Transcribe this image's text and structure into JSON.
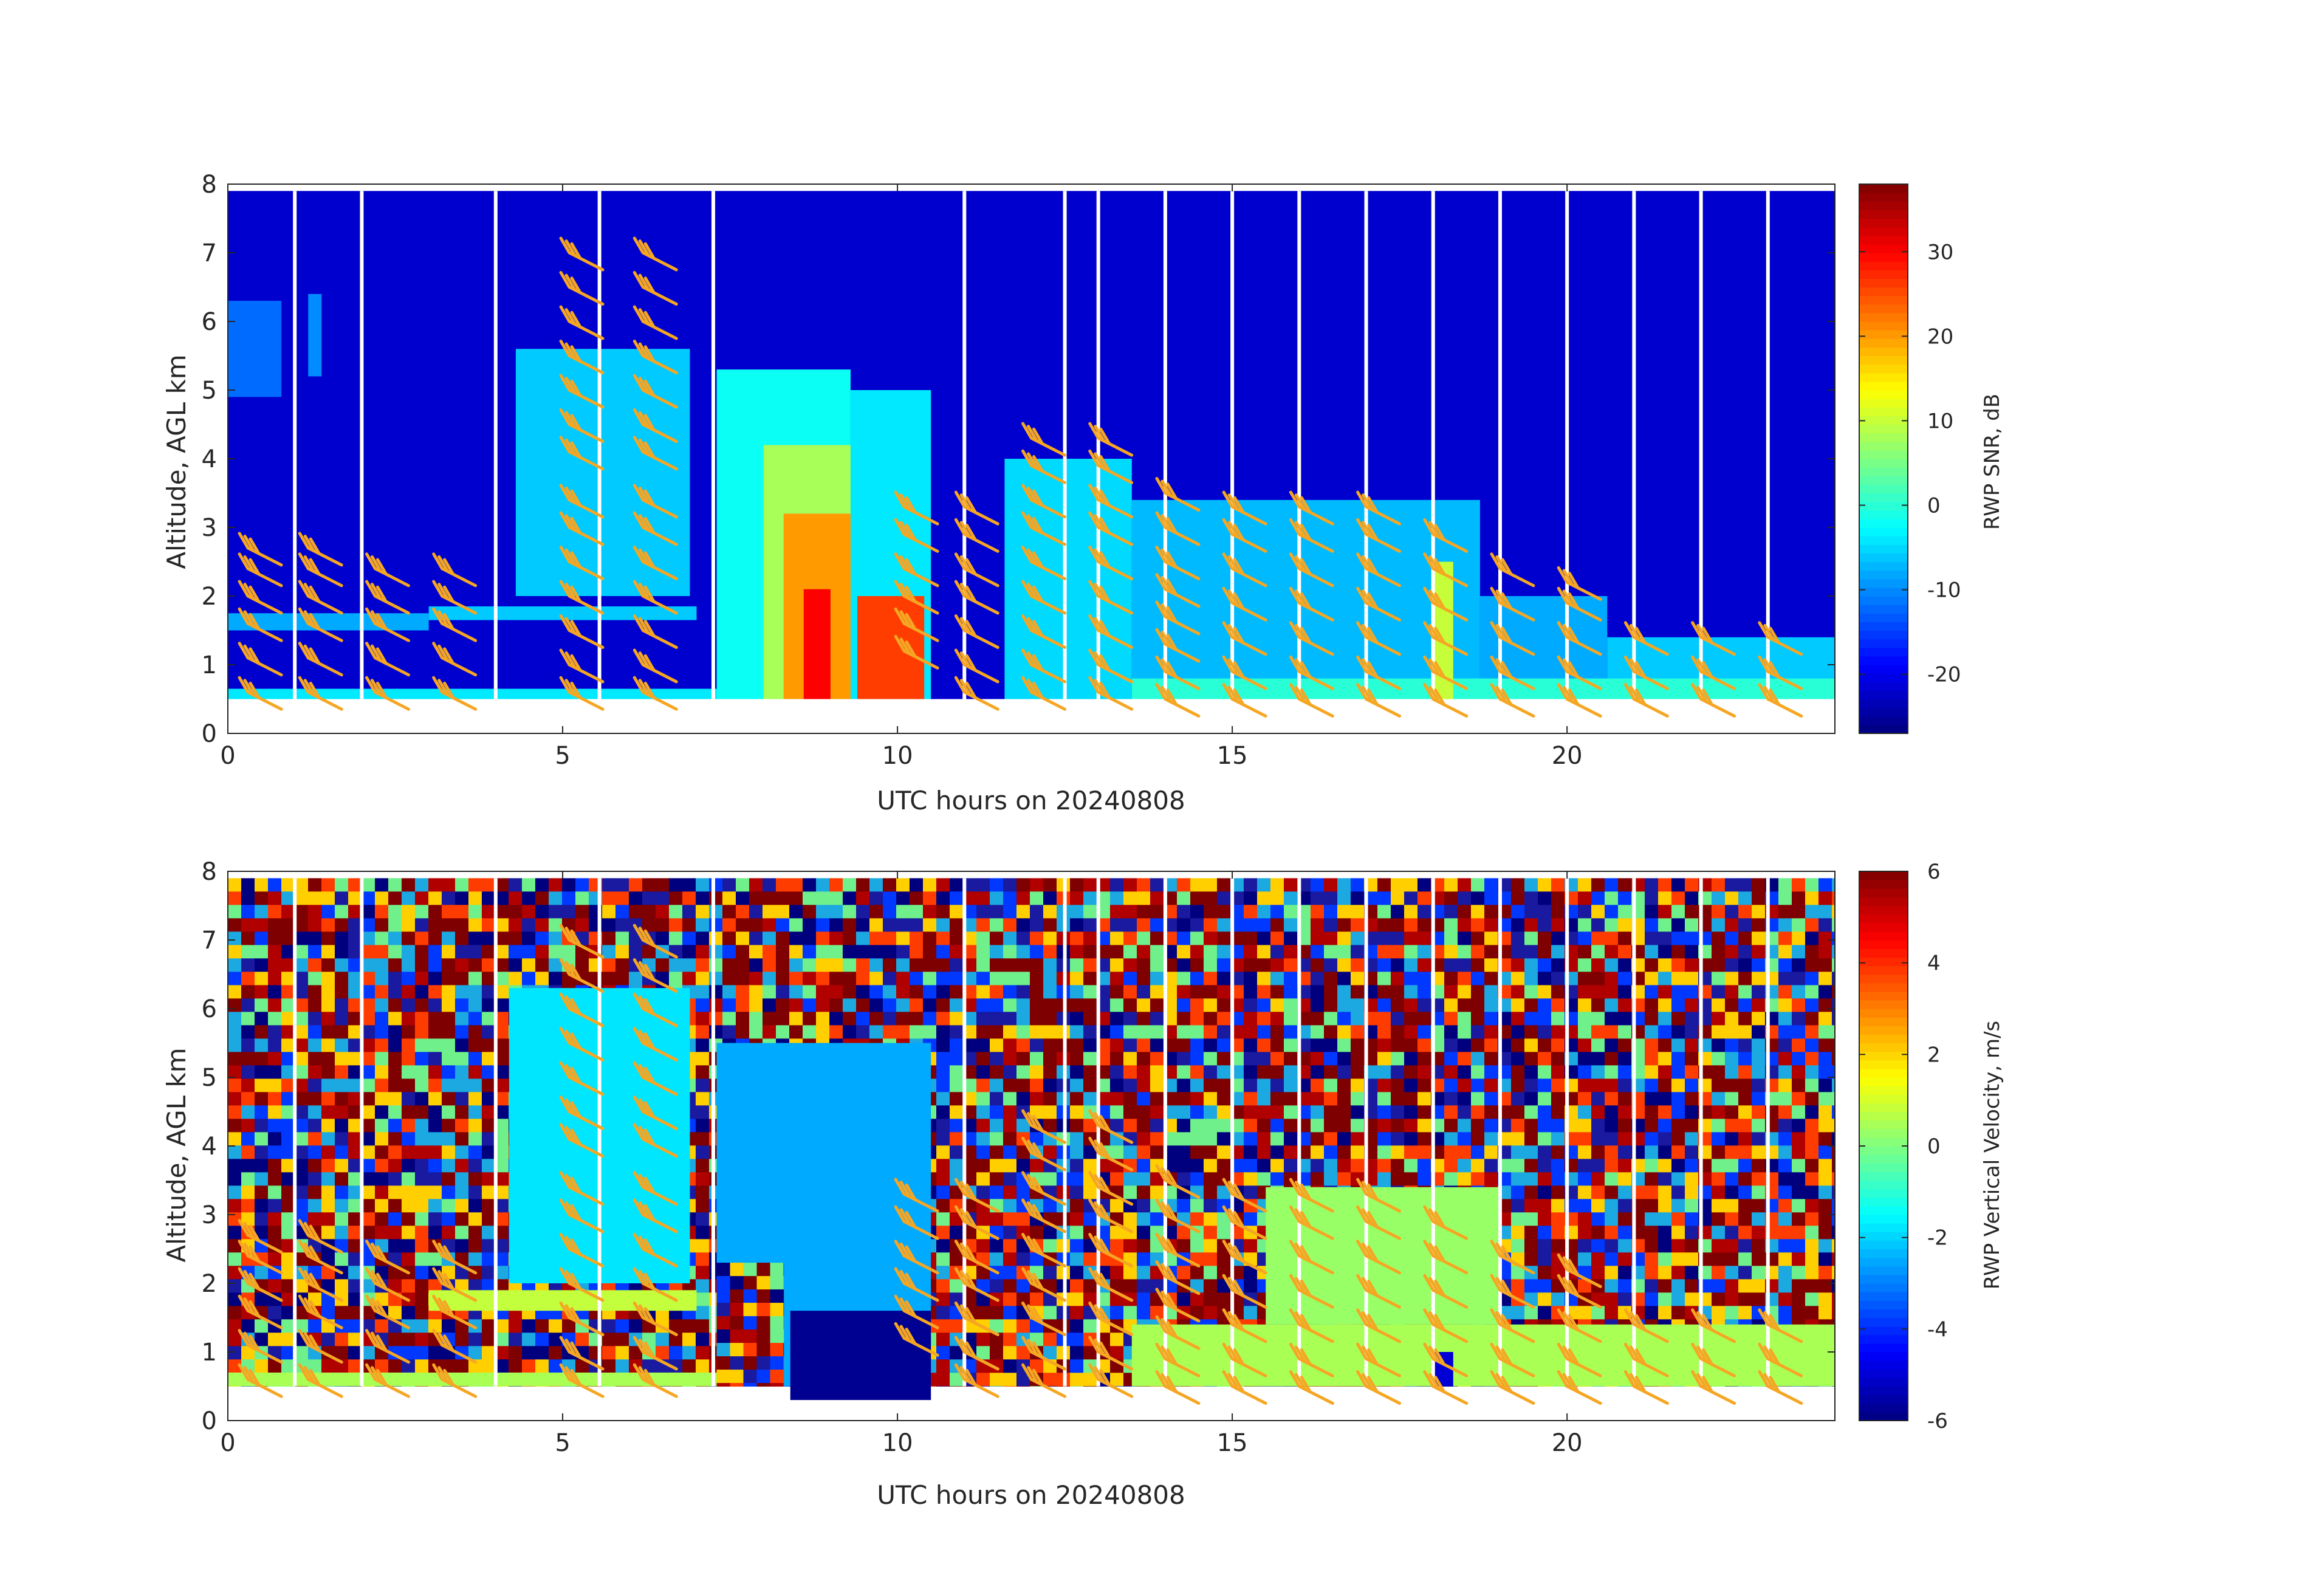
{
  "chart_data": [
    {
      "type": "heatmap",
      "id": "snr",
      "xlabel": "UTC hours on 20240808",
      "ylabel": "Altitude, AGL km",
      "xlim": [
        0,
        24
      ],
      "ylim": [
        0,
        8
      ],
      "xticks": [
        0,
        5,
        10,
        15,
        20
      ],
      "yticks": [
        0,
        1,
        2,
        3,
        4,
        5,
        6,
        7,
        8
      ],
      "colorbar": {
        "label": "RWP SNR, dB",
        "range": [
          -27,
          38
        ],
        "ticks": [
          -20,
          -10,
          0,
          10,
          20,
          30
        ],
        "colormap": "jet"
      },
      "data_gaps_hours": [
        1.0,
        2.0,
        4.0,
        5.55,
        7.25,
        11.0,
        12.5,
        13.0,
        14.0,
        15.0,
        16.0,
        17.0,
        18.0,
        19.0,
        20.0,
        21.0,
        22.0,
        23.0
      ],
      "regions": [
        {
          "x": [
            0,
            24
          ],
          "y": [
            0.5,
            7.9
          ],
          "value": -22
        },
        {
          "x": [
            0,
            0.8
          ],
          "y": [
            4.9,
            6.3
          ],
          "value": -12
        },
        {
          "x": [
            1.2,
            1.4
          ],
          "y": [
            5.2,
            6.4
          ],
          "value": -10
        },
        {
          "x": [
            0,
            7.3
          ],
          "y": [
            0.5,
            0.65
          ],
          "value": -4
        },
        {
          "x": [
            3.0,
            7.0
          ],
          "y": [
            1.65,
            1.85
          ],
          "value": -6
        },
        {
          "x": [
            0,
            3.0
          ],
          "y": [
            1.5,
            1.75
          ],
          "value": -8
        },
        {
          "x": [
            4.3,
            6.9
          ],
          "y": [
            2.0,
            5.6
          ],
          "value": -6
        },
        {
          "x": [
            7.3,
            9.3
          ],
          "y": [
            0.5,
            5.3
          ],
          "value": -2
        },
        {
          "x": [
            9.3,
            10.5
          ],
          "y": [
            0.5,
            5.0
          ],
          "value": -4
        },
        {
          "x": [
            8.0,
            9.3
          ],
          "y": [
            0.5,
            4.2
          ],
          "value": 8
        },
        {
          "x": [
            8.3,
            9.3
          ],
          "y": [
            0.5,
            3.2
          ],
          "value": 20
        },
        {
          "x": [
            8.6,
            9.0
          ],
          "y": [
            0.5,
            2.1
          ],
          "value": 30
        },
        {
          "x": [
            9.4,
            10.4
          ],
          "y": [
            0.5,
            2.0
          ],
          "value": 26
        },
        {
          "x": [
            11.6,
            13.5
          ],
          "y": [
            0.5,
            4.0
          ],
          "value": -5
        },
        {
          "x": [
            13.5,
            18.7
          ],
          "y": [
            0.5,
            3.4
          ],
          "value": -7
        },
        {
          "x": [
            18.7,
            20.6
          ],
          "y": [
            0.5,
            2.0
          ],
          "value": -8
        },
        {
          "x": [
            20.6,
            24.0
          ],
          "y": [
            0.5,
            1.4
          ],
          "value": -6
        },
        {
          "x": [
            13.5,
            24.0
          ],
          "y": [
            0.5,
            0.8
          ],
          "value": 0
        },
        {
          "x": [
            18.0,
            18.3
          ],
          "y": [
            0.5,
            2.5
          ],
          "value": 10
        }
      ]
    },
    {
      "type": "heatmap",
      "id": "velocity",
      "xlabel": "UTC hours on 20240808",
      "ylabel": "Altitude, AGL km",
      "xlim": [
        0,
        24
      ],
      "ylim": [
        0,
        8
      ],
      "xticks": [
        0,
        5,
        10,
        15,
        20
      ],
      "yticks": [
        0,
        1,
        2,
        3,
        4,
        5,
        6,
        7,
        8
      ],
      "colorbar": {
        "label": "RWP Vertical Velocity, m/s",
        "range": [
          -6,
          6
        ],
        "ticks": [
          -6,
          -4,
          -2,
          0,
          2,
          4,
          6
        ],
        "colormap": "jet"
      },
      "data_gaps_hours": [
        1.0,
        2.0,
        4.0,
        5.55,
        7.25,
        11.0,
        12.5,
        13.0,
        14.0,
        15.0,
        16.0,
        17.0,
        18.0,
        19.0,
        20.0,
        21.0,
        22.0,
        23.0
      ],
      "regions": [
        {
          "x": [
            0,
            24
          ],
          "y": [
            0.5,
            7.9
          ],
          "value": "noise"
        },
        {
          "x": [
            4.2,
            6.9
          ],
          "y": [
            2.0,
            6.3
          ],
          "value": -1.8
        },
        {
          "x": [
            7.3,
            10.5
          ],
          "y": [
            0.5,
            5.5
          ],
          "value": -2.5
        },
        {
          "x": [
            7.3,
            8.3
          ],
          "y": [
            0.5,
            2.3
          ],
          "value": "noise"
        },
        {
          "x": [
            8.4,
            10.5
          ],
          "y": [
            0.3,
            1.6
          ],
          "value": -5.8
        },
        {
          "x": [
            0,
            7.3
          ],
          "y": [
            0.5,
            0.7
          ],
          "value": 0.5
        },
        {
          "x": [
            3.0,
            7.0
          ],
          "y": [
            1.6,
            1.9
          ],
          "value": 0.8
        },
        {
          "x": [
            13.5,
            24.0
          ],
          "y": [
            0.5,
            1.4
          ],
          "value": 0.5
        },
        {
          "x": [
            15.5,
            19.0
          ],
          "y": [
            1.4,
            3.4
          ],
          "value": 0.3
        },
        {
          "x": [
            18.0,
            18.3
          ],
          "y": [
            0.5,
            1.0
          ],
          "value": -5
        }
      ]
    }
  ],
  "wind_barbs": {
    "color": "#f5a623",
    "columns": [
      {
        "x": 0.3,
        "y": [
          0.6,
          1.1,
          1.6,
          2.0,
          2.4,
          2.7
        ]
      },
      {
        "x": 1.2,
        "y": [
          0.6,
          1.1,
          1.6,
          2.0,
          2.4,
          2.7
        ]
      },
      {
        "x": 2.2,
        "y": [
          0.6,
          1.1,
          1.6,
          2.0,
          2.4
        ]
      },
      {
        "x": 3.2,
        "y": [
          0.6,
          1.1,
          1.6,
          2.0,
          2.4
        ]
      },
      {
        "x": 5.1,
        "y": [
          0.6,
          1.0,
          1.5,
          2.0,
          2.5,
          3.0,
          3.4,
          4.1,
          4.5,
          5.0,
          5.5,
          6.0,
          6.5,
          7.0
        ]
      },
      {
        "x": 6.2,
        "y": [
          0.6,
          1.0,
          1.5,
          2.0,
          2.5,
          3.0,
          3.4,
          4.1,
          4.5,
          5.0,
          5.5,
          6.0,
          6.5,
          7.0
        ]
      },
      {
        "x": 10.1,
        "y": [
          1.2,
          1.6,
          2.0,
          2.4,
          2.9,
          3.3
        ]
      },
      {
        "x": 11.0,
        "y": [
          0.6,
          1.0,
          1.5,
          2.0,
          2.4,
          2.9,
          3.3
        ]
      },
      {
        "x": 12.0,
        "y": [
          0.6,
          1.0,
          1.5,
          2.0,
          2.5,
          3.0,
          3.4,
          3.9,
          4.3
        ]
      },
      {
        "x": 13.0,
        "y": [
          0.6,
          1.0,
          1.5,
          2.0,
          2.5,
          3.0,
          3.4,
          3.9,
          4.3
        ]
      },
      {
        "x": 14.0,
        "y": [
          0.5,
          0.9,
          1.3,
          1.7,
          2.1,
          2.5,
          3.0,
          3.5
        ]
      },
      {
        "x": 15.0,
        "y": [
          0.5,
          0.9,
          1.4,
          1.9,
          2.4,
          2.9,
          3.3
        ]
      },
      {
        "x": 16.0,
        "y": [
          0.5,
          0.9,
          1.4,
          1.9,
          2.4,
          2.9,
          3.3
        ]
      },
      {
        "x": 17.0,
        "y": [
          0.5,
          0.9,
          1.4,
          1.9,
          2.4,
          2.9,
          3.3
        ]
      },
      {
        "x": 18.0,
        "y": [
          0.5,
          0.9,
          1.4,
          1.9,
          2.4,
          2.9
        ]
      },
      {
        "x": 19.0,
        "y": [
          0.5,
          0.9,
          1.4,
          1.9,
          2.4
        ]
      },
      {
        "x": 20.0,
        "y": [
          0.5,
          0.9,
          1.4,
          1.9,
          2.2
        ]
      },
      {
        "x": 21.0,
        "y": [
          0.5,
          0.9,
          1.4
        ]
      },
      {
        "x": 22.0,
        "y": [
          0.5,
          0.9,
          1.4
        ]
      },
      {
        "x": 23.0,
        "y": [
          0.5,
          0.9,
          1.4
        ]
      }
    ]
  }
}
